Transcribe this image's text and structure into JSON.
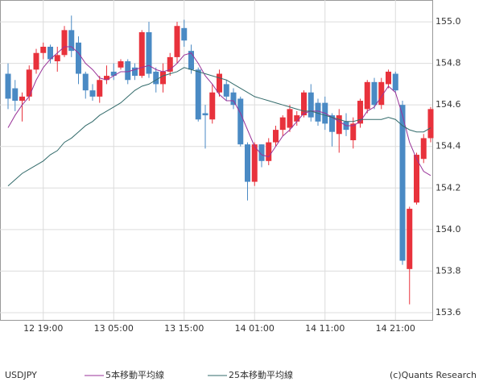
{
  "chart_data": {
    "type": "candlestick",
    "symbol": "USDJPY",
    "credit": "(c)Quants Research",
    "categories": [
      null,
      null,
      null,
      null,
      null,
      "12 19:00",
      null,
      null,
      null,
      null,
      null,
      null,
      null,
      null,
      null,
      "13 05:00",
      null,
      null,
      null,
      null,
      null,
      null,
      null,
      null,
      null,
      "13 15:00",
      null,
      null,
      null,
      null,
      null,
      null,
      null,
      null,
      null,
      "14 01:00",
      null,
      null,
      null,
      null,
      null,
      null,
      null,
      null,
      null,
      "14 11:00",
      null,
      null,
      null,
      null,
      null,
      null,
      null,
      null,
      null,
      "14 21:00",
      null,
      null,
      null,
      null,
      null
    ],
    "open": [
      154.75,
      154.68,
      154.62,
      154.64,
      154.77,
      154.85,
      154.88,
      154.81,
      154.84,
      154.96,
      154.9,
      154.75,
      154.67,
      154.64,
      154.72,
      154.76,
      154.78,
      154.81,
      154.78,
      154.74,
      154.95,
      154.76,
      154.7,
      154.76,
      154.83,
      154.97,
      154.86,
      154.77,
      154.56,
      154.53,
      154.66,
      154.7,
      154.66,
      154.63,
      154.41,
      154.23,
      154.41,
      154.33,
      154.42,
      154.48,
      154.49,
      154.52,
      154.55,
      154.66,
      154.61,
      154.61,
      154.55,
      154.46,
      154.52,
      154.43,
      154.51,
      154.58,
      154.71,
      154.6,
      154.7,
      154.75,
      154.6,
      153.81,
      154.13,
      154.34,
      154.44
    ],
    "high": [
      154.8,
      154.72,
      154.66,
      154.79,
      154.87,
      154.9,
      154.89,
      154.88,
      154.98,
      155.03,
      154.93,
      154.76,
      154.7,
      154.74,
      154.79,
      154.8,
      154.82,
      154.82,
      154.8,
      154.96,
      155.0,
      154.78,
      154.8,
      154.85,
      155.0,
      155.01,
      154.89,
      154.78,
      154.6,
      154.7,
      154.77,
      154.72,
      154.68,
      154.64,
      154.42,
      154.42,
      154.41,
      154.44,
      154.5,
      154.55,
      154.6,
      154.57,
      154.67,
      154.7,
      154.63,
      154.64,
      154.56,
      154.58,
      154.56,
      154.54,
      154.63,
      154.72,
      154.73,
      154.73,
      154.77,
      154.76,
      154.62,
      154.11,
      154.37,
      154.46,
      154.59
    ],
    "low": [
      154.58,
      154.57,
      154.52,
      154.62,
      154.75,
      154.82,
      154.8,
      154.76,
      154.83,
      154.83,
      154.7,
      154.63,
      154.62,
      154.61,
      154.7,
      154.72,
      154.77,
      154.7,
      154.72,
      154.73,
      154.73,
      154.66,
      154.66,
      154.74,
      154.8,
      154.88,
      154.75,
      154.52,
      154.39,
      154.51,
      154.64,
      154.62,
      154.58,
      154.4,
      154.14,
      154.21,
      154.3,
      154.31,
      154.4,
      154.45,
      154.47,
      154.5,
      154.54,
      154.52,
      154.5,
      154.48,
      154.4,
      154.37,
      154.45,
      154.39,
      154.49,
      154.56,
      154.58,
      154.58,
      154.68,
      154.66,
      153.83,
      153.64,
      154.12,
      154.32,
      154.42
    ],
    "close": [
      154.63,
      154.62,
      154.64,
      154.77,
      154.85,
      154.88,
      154.82,
      154.84,
      154.96,
      154.86,
      154.75,
      154.67,
      154.64,
      154.72,
      154.74,
      154.74,
      154.81,
      154.72,
      154.74,
      154.95,
      154.75,
      154.7,
      154.76,
      154.83,
      154.98,
      154.91,
      154.77,
      154.53,
      154.55,
      154.66,
      154.75,
      154.64,
      154.6,
      154.41,
      154.23,
      154.41,
      154.33,
      154.42,
      154.48,
      154.54,
      154.58,
      154.55,
      154.66,
      154.54,
      154.52,
      154.51,
      154.47,
      154.55,
      154.48,
      154.51,
      154.62,
      154.71,
      154.6,
      154.71,
      154.76,
      154.67,
      153.85,
      154.1,
      154.36,
      154.44,
      154.58
    ],
    "up_color": "#e8323c",
    "down_color": "#4a8ac4",
    "series": [
      {
        "name": "5本移動平均線",
        "color": "#993399",
        "values": [
          154.49,
          154.55,
          154.6,
          154.64,
          154.72,
          154.78,
          154.82,
          154.85,
          154.88,
          154.88,
          154.85,
          154.8,
          154.77,
          154.73,
          154.72,
          154.74,
          154.76,
          154.76,
          154.77,
          154.78,
          154.79,
          154.77,
          154.76,
          154.77,
          154.8,
          154.84,
          154.85,
          154.8,
          154.74,
          154.7,
          154.65,
          154.62,
          154.62,
          154.56,
          154.48,
          154.4,
          154.36,
          154.35,
          154.4,
          154.45,
          154.48,
          154.52,
          154.56,
          154.57,
          154.57,
          154.56,
          154.54,
          154.52,
          154.5,
          154.5,
          154.52,
          154.57,
          154.59,
          154.64,
          154.69,
          154.66,
          154.55,
          154.42,
          154.34,
          154.28,
          154.26
        ]
      },
      {
        "name": "25本移動平均線",
        "color": "#336b6b",
        "values": [
          154.21,
          154.24,
          154.27,
          154.29,
          154.31,
          154.33,
          154.36,
          154.38,
          154.42,
          154.44,
          154.47,
          154.5,
          154.52,
          154.55,
          154.57,
          154.59,
          154.61,
          154.64,
          154.67,
          154.69,
          154.7,
          154.72,
          154.74,
          154.75,
          154.76,
          154.78,
          154.77,
          154.76,
          154.75,
          154.74,
          154.73,
          154.72,
          154.7,
          154.68,
          154.66,
          154.64,
          154.63,
          154.62,
          154.61,
          154.6,
          154.59,
          154.58,
          154.57,
          154.57,
          154.56,
          154.55,
          154.54,
          154.53,
          154.52,
          154.52,
          154.53,
          154.53,
          154.53,
          154.53,
          154.54,
          154.53,
          154.5,
          154.48,
          154.47,
          154.47,
          154.49
        ]
      }
    ],
    "ylim": [
      153.565,
      155.105
    ],
    "yticks": [
      {
        "value": 153.6,
        "label": "153.6"
      },
      {
        "value": 153.8,
        "label": "153.8"
      },
      {
        "value": 154,
        "label": "154.0"
      },
      {
        "value": 154.2,
        "label": "154.2"
      },
      {
        "value": 154.4,
        "label": "154.4"
      },
      {
        "value": 154.6,
        "label": "154.6"
      },
      {
        "value": 154.8,
        "label": "154.8"
      },
      {
        "value": 155,
        "label": "155.0"
      }
    ],
    "grid": true
  }
}
